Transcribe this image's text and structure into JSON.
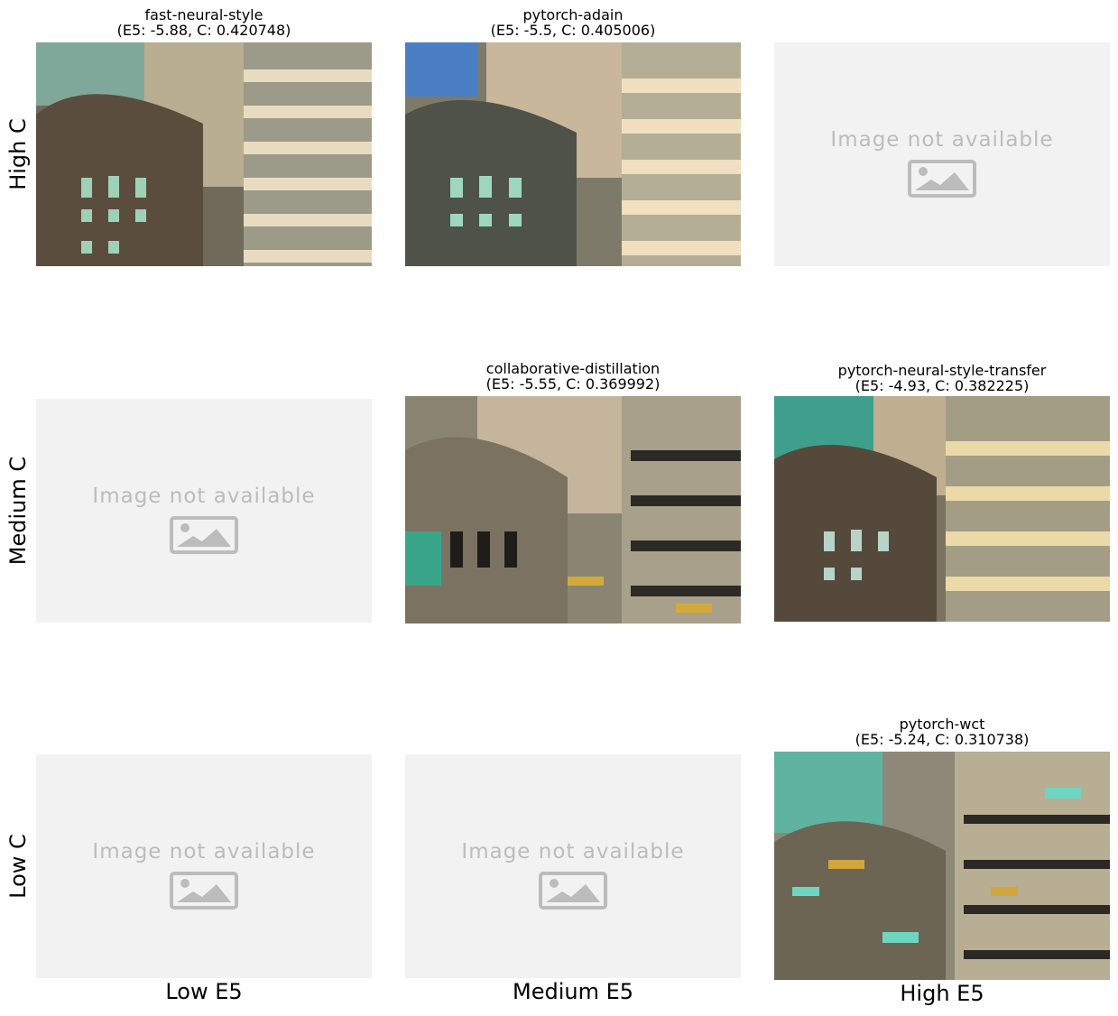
{
  "row_labels": [
    "High C",
    "Medium C",
    "Low C"
  ],
  "col_labels": [
    "Low E5",
    "Medium E5",
    "High E5"
  ],
  "unavailable_text": "Image not available",
  "panels": {
    "high_low": {
      "title": "fast-neural-style",
      "subtitle": "(E5: -5.88, C: 0.420748)"
    },
    "high_medium": {
      "title": "pytorch-adain",
      "subtitle": "(E5: -5.5, C: 0.405006)"
    },
    "medium_medium": {
      "title": "collaborative-distillation",
      "subtitle": "(E5: -5.55, C: 0.369992)"
    },
    "medium_high": {
      "title": "pytorch-neural-style-transfer",
      "subtitle": "(E5: -4.93, C: 0.382225)"
    },
    "low_high": {
      "title": "pytorch-wct",
      "subtitle": "(E5: -5.24, C: 0.310738)"
    }
  },
  "icons": {
    "placeholder": "image-placeholder-icon"
  }
}
